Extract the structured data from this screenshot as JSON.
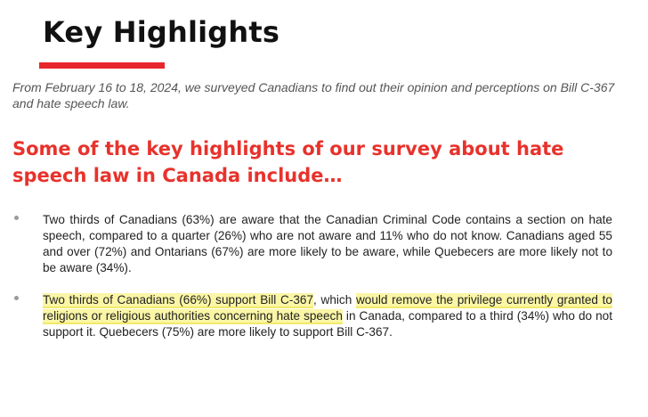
{
  "page": {
    "title": "Key Highlights",
    "intro": "From February 16 to 18, 2024, we surveyed Canadians to find out their opinion and perceptions on Bill C-367 and hate speech law.",
    "subheading": "Some of the key highlights of our survey about hate speech law in Canada include…"
  },
  "bullets": [
    {
      "text": "Two thirds of Canadians (63%) are aware that the Canadian Criminal Code contains a section on hate speech, compared to a quarter (26%) who are not aware and 11% who do not know. Canadians aged 55 and over (72%) and Ontarians (67%) are more likely to be aware, while Quebecers are more likely not to be aware (34%)."
    },
    {
      "hl1": "Two thirds of Canadians (66%) support Bill C-367",
      "mid": ", which ",
      "hl2": "would remove the privilege currently granted to religions or religious authorities concerning hate speech",
      "rest": " in Canada, compared to a third (34%) who do not support it. Quebecers (75%) are more likely to support Bill C-367."
    }
  ],
  "colors": {
    "accent_red": "#e8262d",
    "highlight_yellow": "#fbf6a6"
  }
}
